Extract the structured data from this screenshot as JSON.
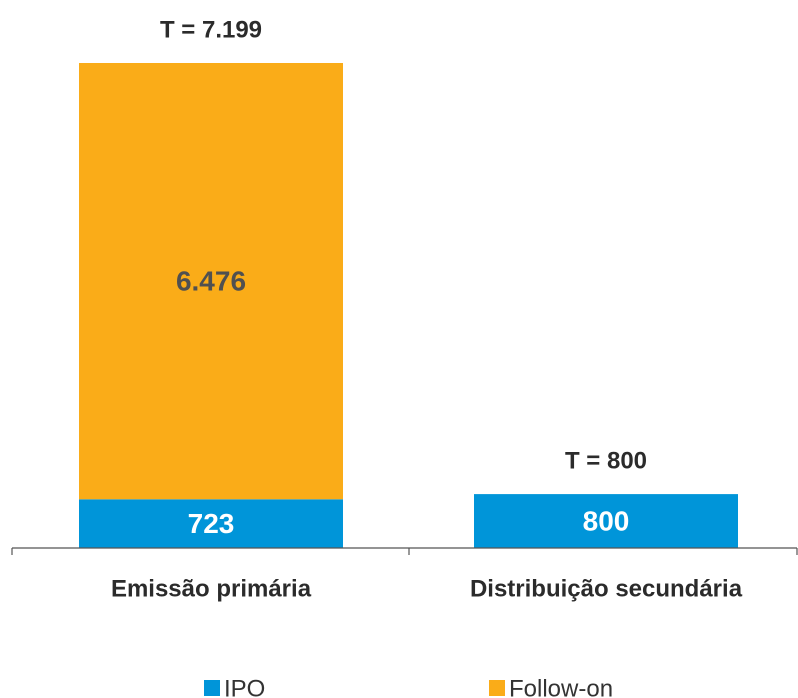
{
  "chart_data": {
    "type": "bar",
    "stacked": true,
    "categories": [
      "Emissão primária",
      "Distribuição secundária"
    ],
    "series": [
      {
        "name": "IPO",
        "color": "#0095D9",
        "values": [
          723,
          800
        ],
        "value_labels": [
          "723",
          "800"
        ],
        "label_color": "#ffffff"
      },
      {
        "name": "Follow-on",
        "color": "#FAAC18",
        "values": [
          6476,
          0
        ],
        "value_labels": [
          "6.476",
          ""
        ],
        "label_color": "#505050"
      }
    ],
    "totals": [
      "T = 7.199",
      "T = 800"
    ],
    "ylim": [
      0,
      7199
    ],
    "grid": false,
    "legend": "bottom"
  }
}
